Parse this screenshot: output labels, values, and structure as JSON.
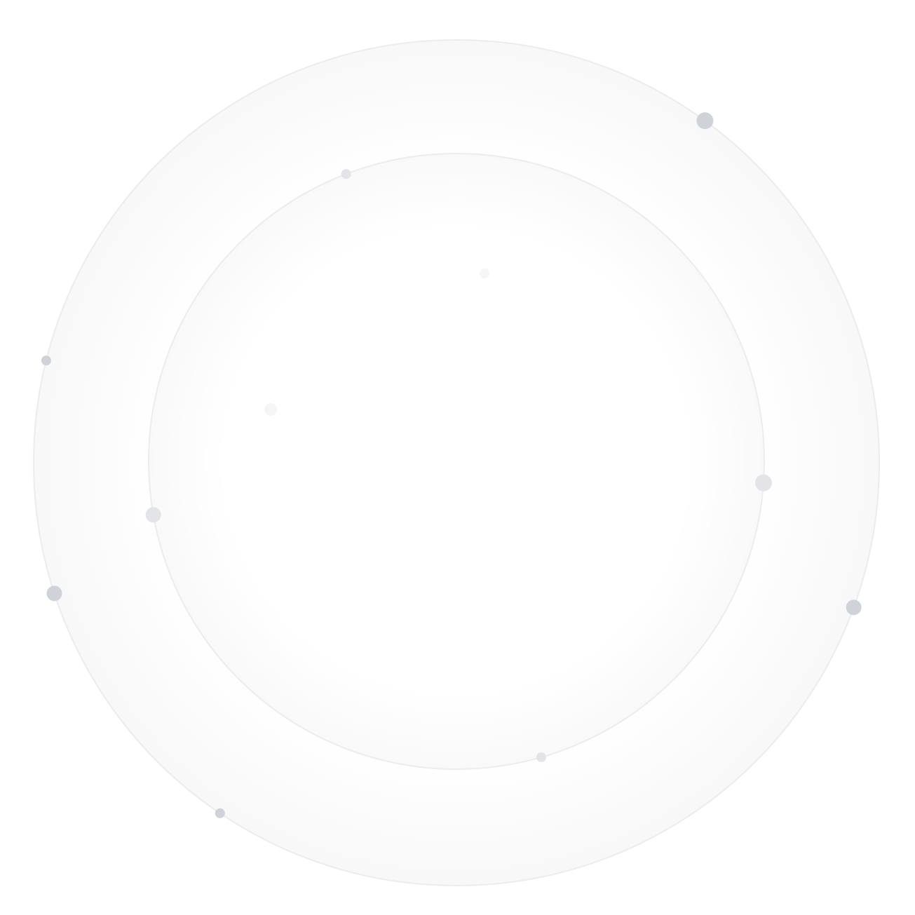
{
  "colors": {
    "background": "#ffffff",
    "ring_stroke": "#ececee",
    "ring_fill_edge": "#f7f7f8",
    "dot_dark": "#cfd3d9",
    "dot_light": "#e2e4e8",
    "dot_faint": "#f4f5f6"
  },
  "orbits": [
    {
      "name": "outer-orbit",
      "dots": [
        {
          "angle_deg": -54,
          "size": "large",
          "tone": "dark"
        },
        {
          "angle_deg": 194,
          "size": "small",
          "tone": "dark"
        },
        {
          "angle_deg": 162,
          "size": "medium",
          "tone": "dark"
        },
        {
          "angle_deg": 20,
          "size": "medium",
          "tone": "dark"
        },
        {
          "angle_deg": 124,
          "size": "small",
          "tone": "dark"
        }
      ]
    },
    {
      "name": "inner-orbit",
      "dots": [
        {
          "angle_deg": -111,
          "size": "small",
          "tone": "light"
        },
        {
          "angle_deg": 4,
          "size": "large",
          "tone": "light"
        },
        {
          "angle_deg": 170,
          "size": "medium",
          "tone": "light"
        },
        {
          "angle_deg": 74,
          "size": "small",
          "tone": "light"
        }
      ]
    }
  ]
}
